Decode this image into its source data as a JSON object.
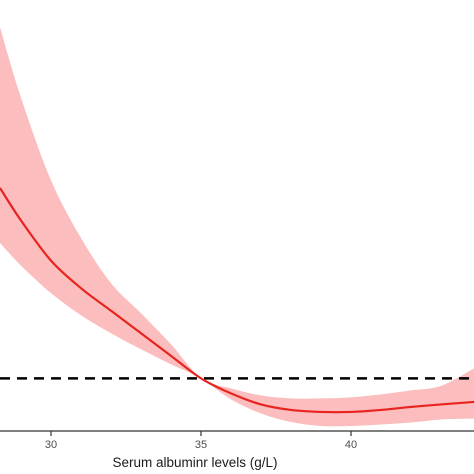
{
  "chart_data": {
    "type": "line",
    "xlabel": "Serum albuminr levels (g/L)",
    "ylabel": "",
    "xlim": [
      28.3,
      44.1
    ],
    "ylim": [
      0.895,
      1.755
    ],
    "x_ticks": [
      30,
      35,
      40
    ],
    "reference_line": {
      "y": 1.0,
      "style": "dashed",
      "color": "#000000"
    },
    "colors": {
      "line": "#e8241f",
      "band": "#fbbdbd"
    },
    "series": [
      {
        "x": [
          28.3,
          29,
          30,
          31,
          32,
          33,
          34,
          35,
          36,
          37,
          38,
          39,
          40,
          41,
          42,
          43,
          44.1
        ],
        "y": [
          1.38,
          1.315,
          1.235,
          1.18,
          1.135,
          1.09,
          1.045,
          1.0,
          0.97,
          0.948,
          0.937,
          0.933,
          0.933,
          0.937,
          0.943,
          0.948,
          0.953
        ],
        "lower": [
          1.27,
          1.225,
          1.17,
          1.126,
          1.09,
          1.058,
          1.028,
          1.0,
          0.958,
          0.93,
          0.913,
          0.905,
          0.905,
          0.908,
          0.912,
          0.918,
          0.92
        ],
        "upper": [
          1.7,
          1.56,
          1.395,
          1.28,
          1.19,
          1.13,
          1.068,
          1.0,
          0.98,
          0.966,
          0.96,
          0.96,
          0.962,
          0.968,
          0.976,
          0.985,
          1.02
        ]
      }
    ]
  }
}
